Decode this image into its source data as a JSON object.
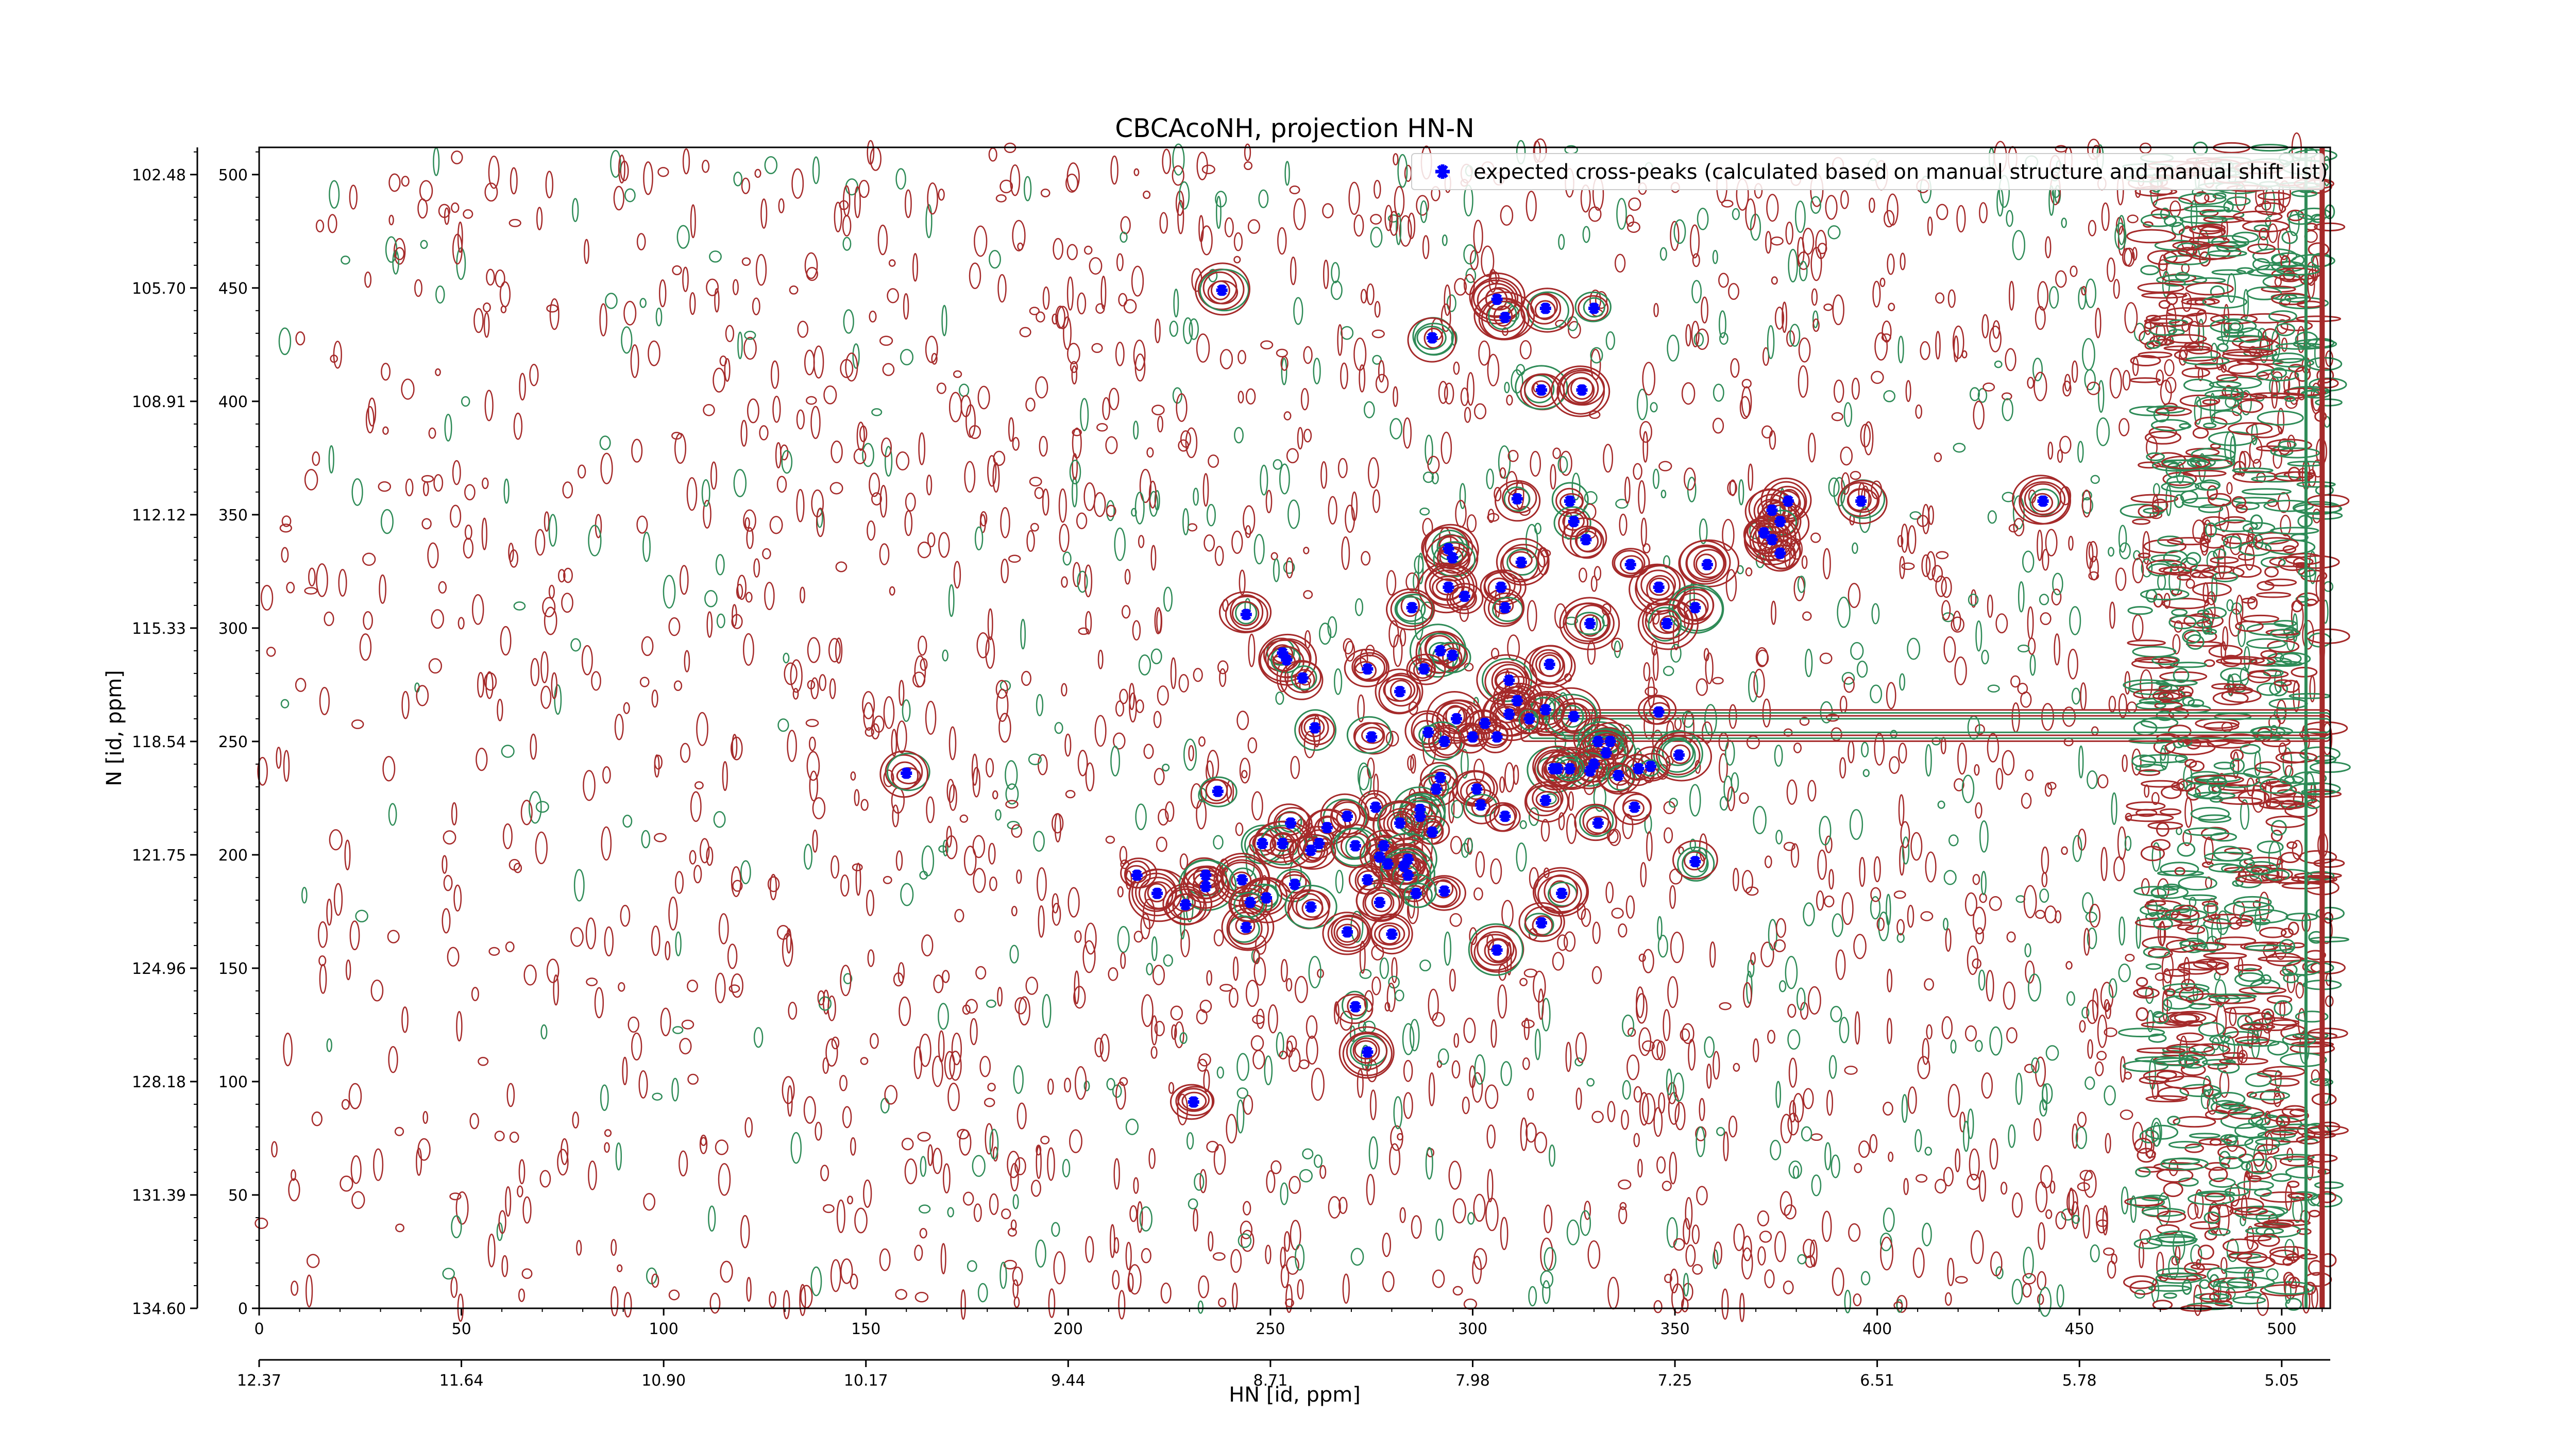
{
  "chart_data": {
    "type": "scatter",
    "title": "CBCAcoNH, projection HN-N",
    "xlabel": "HN [id, ppm]",
    "ylabel": "N [id, ppm]",
    "xlim": [
      0,
      512
    ],
    "ylim": [
      0,
      512
    ],
    "x_index_ticks": [
      "0",
      "50",
      "100",
      "150",
      "200",
      "250",
      "300",
      "350",
      "400",
      "450",
      "500"
    ],
    "x_ppm_ticks": [
      "12.37",
      "11.64",
      "10.90",
      "10.17",
      "9.44",
      "8.71",
      "7.98",
      "7.25",
      "6.51",
      "5.78",
      "5.05"
    ],
    "y_index_ticks": [
      "0",
      "50",
      "100",
      "150",
      "200",
      "250",
      "300",
      "350",
      "400",
      "450",
      "500"
    ],
    "y_ppm_ticks": [
      "134.60",
      "131.39",
      "128.18",
      "124.96",
      "121.75",
      "118.54",
      "115.33",
      "112.12",
      "108.91",
      "105.70",
      "102.48"
    ],
    "legend": {
      "placement": "top-right",
      "entries": [
        "expected cross-peaks (calculated based on manual structure and manual shift list)"
      ]
    },
    "colors": {
      "positive_contours": "#a52a2a",
      "negative_contours": "#2e8b57",
      "marker": "#0000ff"
    },
    "series": [
      {
        "name": "expected cross-peaks (calculated based on manual structure and manual shift list)",
        "points": [
          [
            238,
            449
          ],
          [
            306,
            445
          ],
          [
            318,
            441
          ],
          [
            330,
            441
          ],
          [
            308,
            437
          ],
          [
            290,
            428
          ],
          [
            317,
            405
          ],
          [
            327,
            405
          ],
          [
            311,
            357
          ],
          [
            324,
            356
          ],
          [
            396,
            356
          ],
          [
            441,
            356
          ],
          [
            378,
            356
          ],
          [
            374,
            352
          ],
          [
            325,
            347
          ],
          [
            376,
            347
          ],
          [
            372,
            342
          ],
          [
            328,
            339
          ],
          [
            374,
            339
          ],
          [
            294,
            335
          ],
          [
            295,
            331
          ],
          [
            312,
            329
          ],
          [
            339,
            328
          ],
          [
            358,
            328
          ],
          [
            376,
            333
          ],
          [
            294,
            318
          ],
          [
            307,
            318
          ],
          [
            346,
            318
          ],
          [
            298,
            314
          ],
          [
            308,
            309
          ],
          [
            355,
            309
          ],
          [
            244,
            306
          ],
          [
            285,
            309
          ],
          [
            329,
            302
          ],
          [
            348,
            302
          ],
          [
            292,
            290
          ],
          [
            253,
            289
          ],
          [
            254,
            286
          ],
          [
            274,
            282
          ],
          [
            295,
            288
          ],
          [
            319,
            284
          ],
          [
            258,
            278
          ],
          [
            288,
            282
          ],
          [
            282,
            272
          ],
          [
            309,
            277
          ],
          [
            311,
            268
          ],
          [
            318,
            264
          ],
          [
            309,
            262
          ],
          [
            314,
            260
          ],
          [
            325,
            261
          ],
          [
            303,
            258
          ],
          [
            346,
            263
          ],
          [
            261,
            256
          ],
          [
            296,
            260
          ],
          [
            289,
            254
          ],
          [
            275,
            252
          ],
          [
            293,
            250
          ],
          [
            300,
            252
          ],
          [
            306,
            252
          ],
          [
            331,
            250
          ],
          [
            334,
            250
          ],
          [
            333,
            245
          ],
          [
            330,
            240
          ],
          [
            351,
            244
          ],
          [
            320,
            238
          ],
          [
            329,
            237
          ],
          [
            336,
            235
          ],
          [
            321,
            238
          ],
          [
            324,
            238
          ],
          [
            341,
            238
          ],
          [
            344,
            239
          ],
          [
            160,
            236
          ],
          [
            292,
            234
          ],
          [
            291,
            229
          ],
          [
            237,
            228
          ],
          [
            301,
            229
          ],
          [
            276,
            221
          ],
          [
            287,
            220
          ],
          [
            302,
            222
          ],
          [
            318,
            224
          ],
          [
            340,
            221
          ],
          [
            308,
            217
          ],
          [
            287,
            217
          ],
          [
            269,
            217
          ],
          [
            255,
            214
          ],
          [
            282,
            214
          ],
          [
            264,
            212
          ],
          [
            331,
            214
          ],
          [
            248,
            205
          ],
          [
            253,
            205
          ],
          [
            262,
            205
          ],
          [
            271,
            204
          ],
          [
            290,
            210
          ],
          [
            260,
            202
          ],
          [
            278,
            204
          ],
          [
            277,
            199
          ],
          [
            284,
            198
          ],
          [
            355,
            197
          ],
          [
            279,
            196
          ],
          [
            283,
            195
          ],
          [
            217,
            191
          ],
          [
            234,
            191
          ],
          [
            284,
            191
          ],
          [
            274,
            189
          ],
          [
            256,
            187
          ],
          [
            293,
            184
          ],
          [
            222,
            183
          ],
          [
            243,
            189
          ],
          [
            322,
            183
          ],
          [
            234,
            186
          ],
          [
            286,
            183
          ],
          [
            249,
            181
          ],
          [
            229,
            178
          ],
          [
            260,
            177
          ],
          [
            277,
            179
          ],
          [
            244,
            168
          ],
          [
            317,
            170
          ],
          [
            280,
            165
          ],
          [
            269,
            166
          ],
          [
            306,
            158
          ],
          [
            245,
            179
          ],
          [
            271,
            133
          ],
          [
            274,
            113
          ],
          [
            231,
            91
          ]
        ]
      }
    ]
  }
}
